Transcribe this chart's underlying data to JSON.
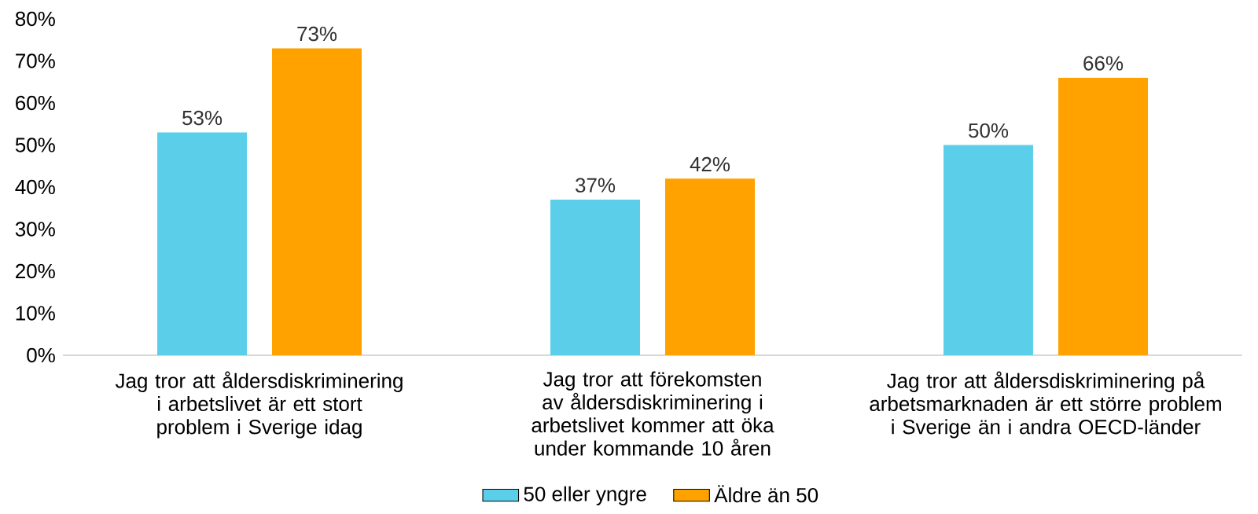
{
  "chart_data": {
    "type": "bar",
    "categories": [
      "Jag tror att åldersdiskriminering i arbetslivet är ett stort problem i Sverige idag",
      "Jag tror att förekomsten av åldersdiskriminering i arbetslivet kommer att öka under kommande 10 åren",
      "Jag tror att åldersdiskriminering på arbetsmarknaden är ett större problem i Sverige än i andra OECD-länder"
    ],
    "series": [
      {
        "name": "50 eller yngre",
        "color": "#5bcfe9",
        "values": [
          53,
          37,
          50
        ],
        "value_labels": [
          "53%",
          "37%",
          "50%"
        ]
      },
      {
        "name": "Äldre än 50",
        "color": "#ffa200",
        "values": [
          73,
          42,
          66
        ],
        "value_labels": [
          "73%",
          "42%",
          "66%"
        ]
      }
    ],
    "ylim": [
      0,
      80
    ],
    "yticks": [
      {
        "value": 0,
        "label": "0%"
      },
      {
        "value": 10,
        "label": "10%"
      },
      {
        "value": 20,
        "label": "20%"
      },
      {
        "value": 30,
        "label": "30%"
      },
      {
        "value": 40,
        "label": "40%"
      },
      {
        "value": 50,
        "label": "50%"
      },
      {
        "value": 60,
        "label": "60%"
      },
      {
        "value": 70,
        "label": "70%"
      },
      {
        "value": 80,
        "label": "80%"
      }
    ],
    "legend": "bottom"
  }
}
